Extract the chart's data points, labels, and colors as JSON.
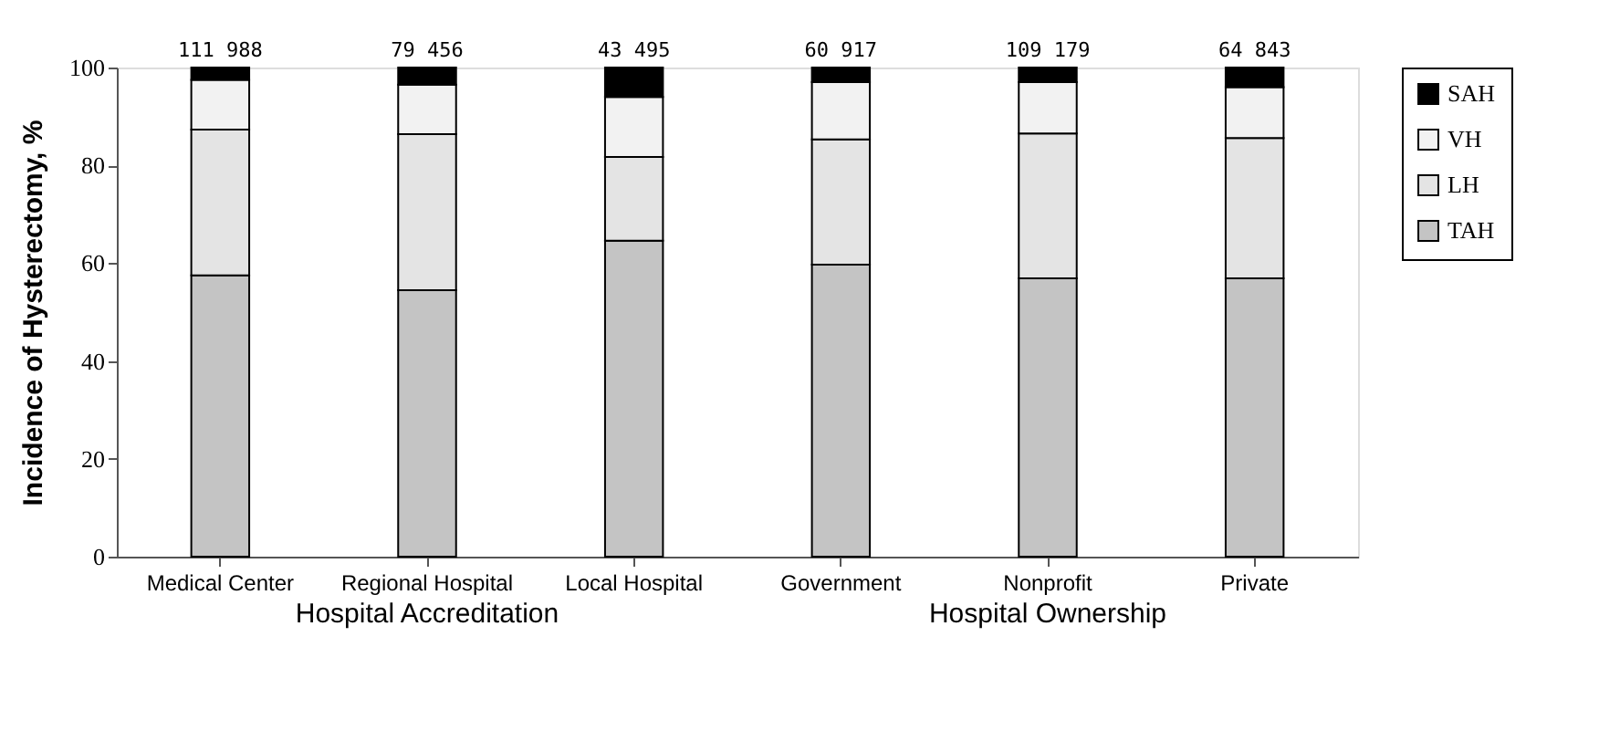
{
  "chart_data": {
    "type": "bar",
    "stacked": true,
    "ylabel": "Incidence of  Hysterectomy, %",
    "categories": [
      "Medical Center",
      "Regional Hospital",
      "Local Hospital",
      "Government",
      "Nonprofit",
      "Private"
    ],
    "series": [
      {
        "name": "TAH",
        "color": "#c4c4c4",
        "values": [
          57.5,
          54.5,
          64.6,
          59.7,
          56.9,
          56.9
        ]
      },
      {
        "name": "LH",
        "color": "#e4e4e4",
        "values": [
          29.8,
          31.9,
          17.1,
          25.6,
          29.6,
          28.7
        ]
      },
      {
        "name": "VH",
        "color": "#f2f2f2",
        "values": [
          10.2,
          10.1,
          12.3,
          11.7,
          10.5,
          10.4
        ]
      },
      {
        "name": "SAH",
        "color": "#000000",
        "values": [
          2.5,
          3.5,
          6.0,
          3.0,
          3.0,
          4.0
        ]
      }
    ],
    "annotations": [
      {
        "text": "111 988",
        "x": "Medical Center",
        "y": 100
      },
      {
        "text": "79 456",
        "x": "Regional Hospital",
        "y": 100
      },
      {
        "text": "43 495",
        "x": "Local Hospital",
        "y": 100
      },
      {
        "text": "60 917",
        "x": "Government",
        "y": 100
      },
      {
        "text": "109 179",
        "x": "Nonprofit",
        "y": 100
      },
      {
        "text": "64 843",
        "x": "Private",
        "y": 100
      },
      "Hospital Accreditation",
      "Hospital Ownership"
    ],
    "ylim": [
      0,
      100
    ],
    "yticks": [
      0,
      20,
      40,
      60,
      80,
      100
    ],
    "grid": false,
    "legend": "right"
  }
}
